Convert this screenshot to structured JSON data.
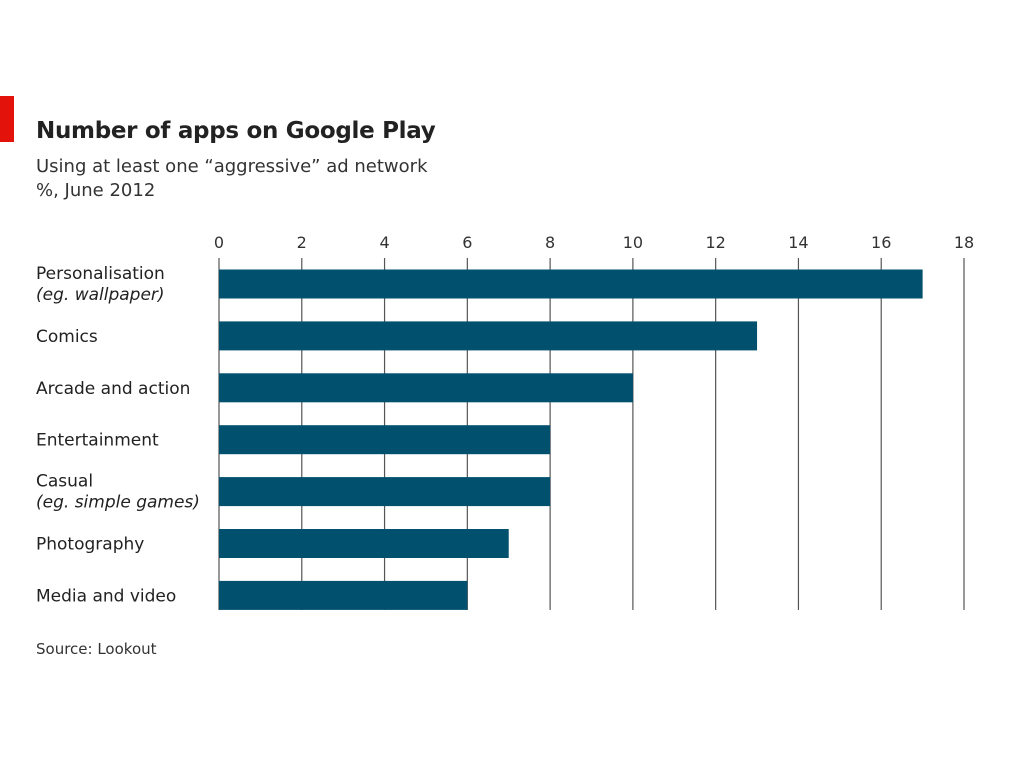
{
  "header": {
    "title": "Number of apps on Google Play",
    "subtitle_line1": "Using at least one “aggressive” ad network",
    "subtitle_line2": "%, June 2012"
  },
  "footer": {
    "source": "Source: Lookout"
  },
  "colors": {
    "accent": "#e3120b",
    "bar": "#00506e",
    "grid": "#555555"
  },
  "chart_data": {
    "type": "bar",
    "orientation": "horizontal",
    "title": "Number of apps on Google Play",
    "subtitle": "Using at least one “aggressive” ad network",
    "unit": "%, June 2012",
    "categories": [
      "Personalisation",
      "Comics",
      "Arcade and action",
      "Entertainment",
      "Casual",
      "Photography",
      "Media and video"
    ],
    "category_notes": [
      "(eg. wallpaper)",
      "",
      "",
      "",
      "(eg. simple games)",
      "",
      ""
    ],
    "values": [
      17,
      13,
      10,
      8,
      8,
      7,
      6
    ],
    "xlim": [
      0,
      18
    ],
    "xticks": [
      "0",
      "2",
      "4",
      "6",
      "8",
      "10",
      "12",
      "14",
      "16",
      "18"
    ],
    "xaxis_position": "top",
    "grid": true,
    "source": "Source: Lookout"
  }
}
